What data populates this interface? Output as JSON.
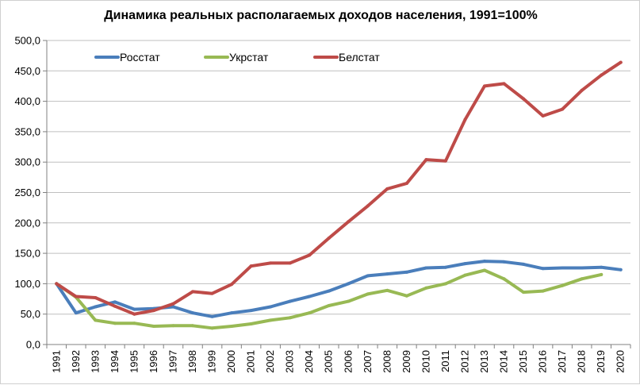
{
  "chart_data": {
    "type": "line",
    "title": "Динамика реальных располагаемых доходов населения, 1991=100%",
    "xlabel": "",
    "ylabel": "",
    "ylim": [
      0,
      500
    ],
    "y_ticks": [
      "0,0",
      "50,0",
      "100,0",
      "150,0",
      "200,0",
      "250,0",
      "300,0",
      "350,0",
      "400,0",
      "450,0",
      "500,0"
    ],
    "grid": true,
    "legend_position": "top-left",
    "x": [
      "1991",
      "1992",
      "1993",
      "1994",
      "1995",
      "1996",
      "1997",
      "1998",
      "1999",
      "2000",
      "2001",
      "2002",
      "2003",
      "2004",
      "2005",
      "2006",
      "2007",
      "2008",
      "2009",
      "2010",
      "2011",
      "2012",
      "2013",
      "2014",
      "2015",
      "2016",
      "2017",
      "2018",
      "2019",
      "2020"
    ],
    "series": [
      {
        "name": "Росстат",
        "color": "#4a7ebb",
        "values": [
          100,
          52,
          62,
          70,
          58,
          59,
          62,
          52,
          46,
          52,
          56,
          62,
          71,
          79,
          88,
          100,
          113,
          116,
          119,
          126,
          127,
          133,
          137,
          136,
          132,
          125,
          126,
          126,
          127,
          123
        ]
      },
      {
        "name": "Укрстат",
        "color": "#98b954",
        "values": [
          100,
          78,
          40,
          35,
          35,
          30,
          31,
          31,
          27,
          30,
          34,
          40,
          44,
          52,
          64,
          71,
          83,
          89,
          80,
          93,
          100,
          114,
          122,
          108,
          86,
          88,
          97,
          108,
          115,
          null
        ]
      },
      {
        "name": "Белстат",
        "color": "#be4b48",
        "values": [
          100,
          79,
          77,
          63,
          50,
          56,
          67,
          87,
          84,
          99,
          129,
          134,
          134,
          147,
          175,
          202,
          228,
          256,
          265,
          304,
          302,
          370,
          425,
          429,
          404,
          376,
          387,
          418,
          443,
          464
        ]
      }
    ]
  }
}
